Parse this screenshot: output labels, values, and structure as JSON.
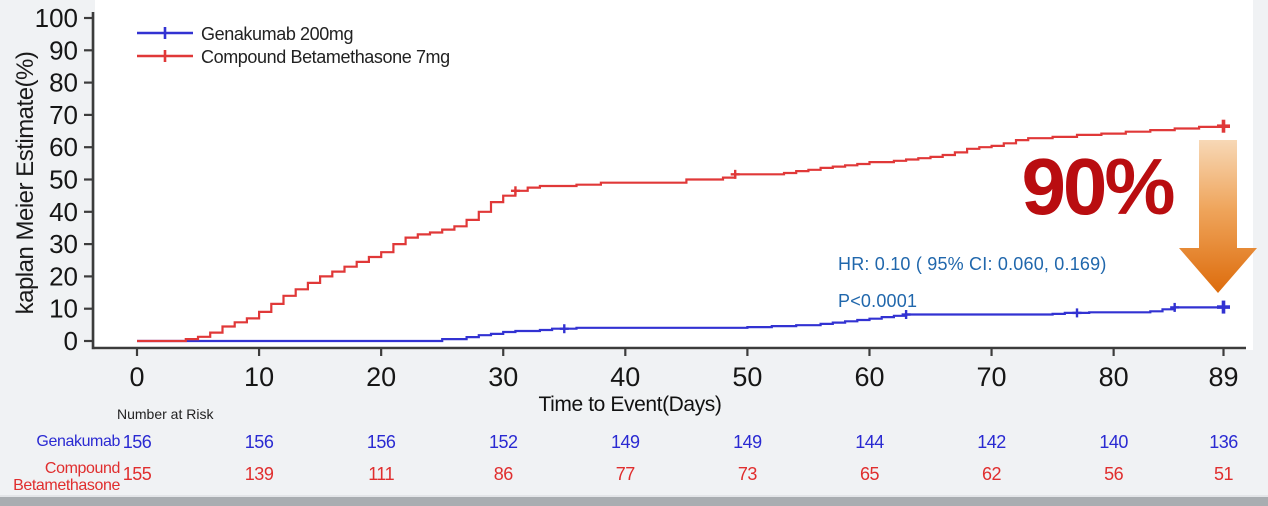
{
  "page": {
    "background": "#f0f2f4",
    "plot_background": "#ffffff",
    "bottom_bar_color": "#a9adb1",
    "axis_color": "#3c3c3c",
    "tick_label_color": "#161616"
  },
  "chart_data": {
    "type": "line",
    "variant": "kaplan_meier_step_survival",
    "title": "",
    "xlabel": "Time to Event(Days)",
    "ylabel": "kaplan Meier Estimate(%)",
    "xlim": [
      0,
      89
    ],
    "ylim": [
      0,
      100
    ],
    "x_ticks": [
      0,
      10,
      20,
      30,
      40,
      50,
      60,
      70,
      80,
      89
    ],
    "y_ticks": [
      0,
      10,
      20,
      30,
      40,
      50,
      60,
      70,
      80,
      90,
      100
    ],
    "grid": false,
    "legend": {
      "position": "top-left-inside",
      "entries": [
        "Genakumab 200mg",
        "Compound Betamethasone 7mg"
      ]
    },
    "series": [
      {
        "name": "Genakumab 200mg",
        "color": "#3232d2",
        "censor_days": [
          35,
          63,
          77,
          85,
          89
        ],
        "step_points": [
          [
            0,
            0
          ],
          [
            25,
            0.6
          ],
          [
            27,
            1.2
          ],
          [
            28,
            1.8
          ],
          [
            29,
            2.2
          ],
          [
            30,
            2.8
          ],
          [
            31,
            3.1
          ],
          [
            33,
            3.4
          ],
          [
            34,
            3.8
          ],
          [
            36,
            4.1
          ],
          [
            50,
            4.3
          ],
          [
            52,
            4.6
          ],
          [
            54,
            4.9
          ],
          [
            56,
            5.3
          ],
          [
            57,
            5.7
          ],
          [
            58,
            6.1
          ],
          [
            59,
            6.5
          ],
          [
            60,
            6.9
          ],
          [
            61,
            7.4
          ],
          [
            62,
            7.8
          ],
          [
            63,
            8.2
          ],
          [
            75,
            8.4
          ],
          [
            76,
            8.7
          ],
          [
            78,
            8.9
          ],
          [
            83,
            9.2
          ],
          [
            84,
            9.8
          ],
          [
            85,
            10.4
          ],
          [
            89,
            10.5
          ]
        ]
      },
      {
        "name": "Compound Betamethasone 7mg",
        "color": "#e03838",
        "censor_days": [
          31,
          49,
          89
        ],
        "step_points": [
          [
            0,
            0
          ],
          [
            4,
            0.6
          ],
          [
            5,
            1.3
          ],
          [
            6,
            2.6
          ],
          [
            7,
            4.5
          ],
          [
            8,
            5.8
          ],
          [
            9,
            7
          ],
          [
            10,
            9
          ],
          [
            11,
            11.5
          ],
          [
            12,
            14
          ],
          [
            13,
            16
          ],
          [
            14,
            18
          ],
          [
            15,
            20
          ],
          [
            16,
            21.5
          ],
          [
            17,
            23
          ],
          [
            18,
            24.5
          ],
          [
            19,
            26
          ],
          [
            20,
            27.5
          ],
          [
            21,
            30
          ],
          [
            22,
            32
          ],
          [
            23,
            33
          ],
          [
            24,
            33.6
          ],
          [
            25,
            34.5
          ],
          [
            26,
            35.5
          ],
          [
            27,
            37.5
          ],
          [
            28,
            40
          ],
          [
            29,
            43
          ],
          [
            30,
            45
          ],
          [
            31,
            46.5
          ],
          [
            32,
            47.5
          ],
          [
            33,
            48
          ],
          [
            36,
            48.4
          ],
          [
            38,
            49
          ],
          [
            45,
            50
          ],
          [
            48,
            50.6
          ],
          [
            49,
            51.6
          ],
          [
            53,
            52
          ],
          [
            54,
            52.6
          ],
          [
            55,
            53
          ],
          [
            56,
            53.6
          ],
          [
            57,
            54
          ],
          [
            58,
            54.4
          ],
          [
            59,
            54.8
          ],
          [
            60,
            55.4
          ],
          [
            62,
            55.8
          ],
          [
            63,
            56.2
          ],
          [
            64,
            56.6
          ],
          [
            65,
            57
          ],
          [
            66,
            57.6
          ],
          [
            67,
            58.4
          ],
          [
            68,
            59.5
          ],
          [
            69,
            60
          ],
          [
            70,
            60.4
          ],
          [
            71,
            61.2
          ],
          [
            72,
            62.2
          ],
          [
            73,
            62.8
          ],
          [
            75,
            63.2
          ],
          [
            77,
            63.8
          ],
          [
            79,
            64.2
          ],
          [
            81,
            64.8
          ],
          [
            83,
            65.3
          ],
          [
            85,
            65.8
          ],
          [
            87,
            66.3
          ],
          [
            89,
            66.5
          ]
        ]
      }
    ],
    "annotations": {
      "hr_text": "HR: 0.10 ( 95% CI: 0.060, 0.169)",
      "p_text": "P<0.0001",
      "stat_text_color": "#2067ac",
      "big_label": "90%",
      "big_label_color": "#b90d10",
      "arrow_gradient": [
        "#f7d8b6",
        "#efa55c",
        "#dd6c0c"
      ]
    },
    "risk_table": {
      "title": "Number at Risk",
      "rows": [
        {
          "label": "Genakumab",
          "color": "#2a2ad2",
          "values": [
            156,
            156,
            156,
            152,
            149,
            149,
            144,
            142,
            140,
            136
          ]
        },
        {
          "label": "Compound Betamethasone",
          "color": "#e02e2e",
          "values": [
            155,
            139,
            111,
            86,
            77,
            73,
            65,
            62,
            56,
            51
          ]
        }
      ]
    }
  }
}
